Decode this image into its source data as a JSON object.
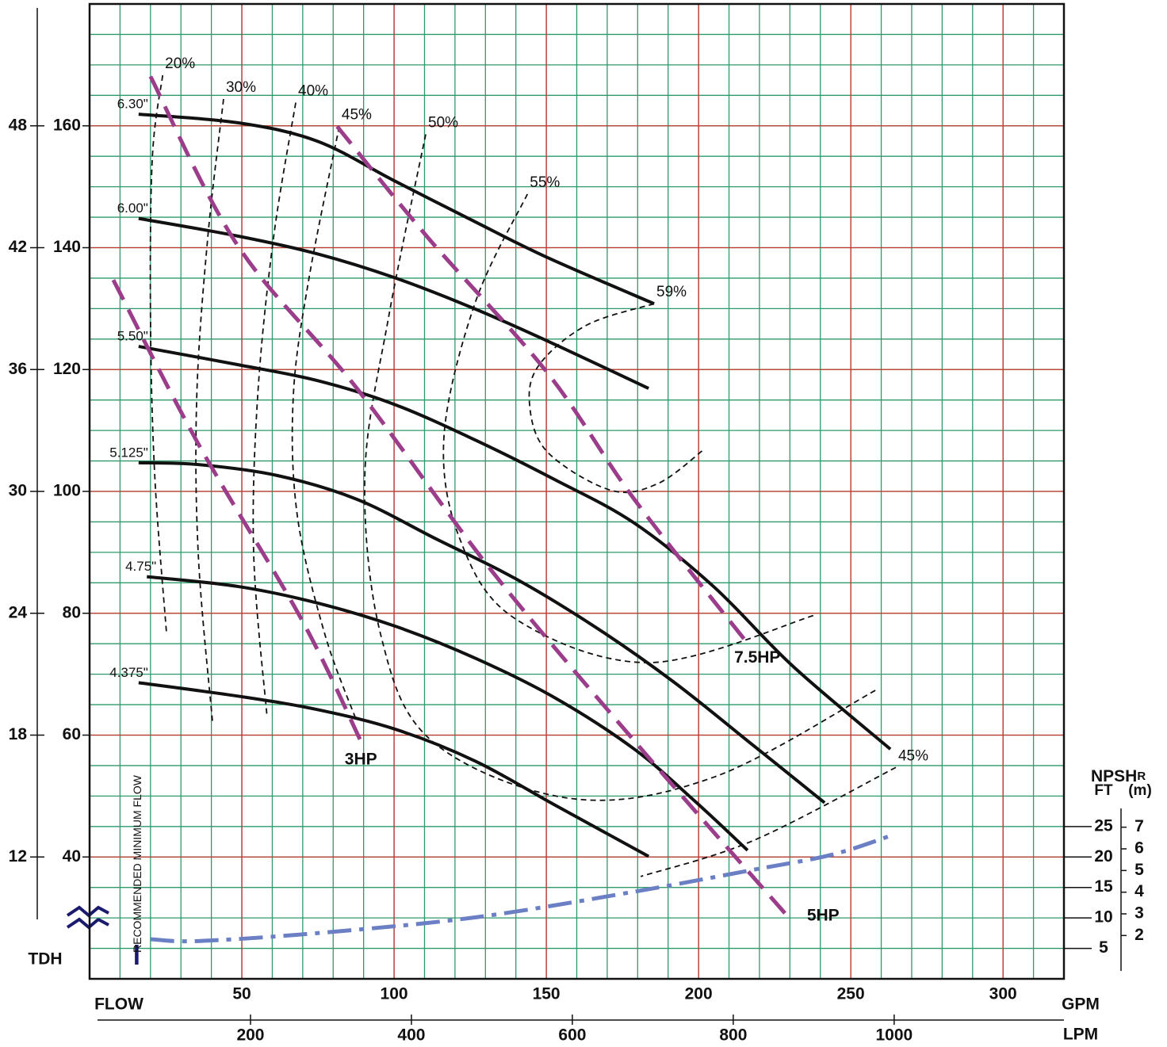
{
  "chart_data": {
    "type": "pump-curve",
    "x_label": "FLOW",
    "x_unit": "GPM",
    "x2_unit": "LPM",
    "y_label": "TDH",
    "xlim": [
      0,
      320
    ],
    "xticks": [
      50,
      100,
      150,
      200,
      250,
      300
    ],
    "x2lim": [
      0,
      1211
    ],
    "x2ticks": [
      200,
      400,
      600,
      800,
      1000
    ],
    "ylim": [
      20,
      180
    ],
    "yticks": [
      40,
      60,
      80,
      100,
      120,
      140,
      160
    ],
    "y2lim": [
      6,
      54
    ],
    "y2ticks": [
      12,
      18,
      24,
      30,
      36,
      42,
      48
    ],
    "grid": true,
    "minor_color": "#2e9a6c",
    "major_color": "#c8372d",
    "npsh_label": "NPSH",
    "npsh_sub": "R",
    "npsh_ft": "FT",
    "npsh_m": "(m)",
    "npsh_lim": [
      0,
      160
    ],
    "npsh_ticks": [
      5,
      10,
      15,
      20,
      25
    ],
    "npsh_m_lim": [
      0,
      45
    ],
    "npsh_m_ticks": [
      2,
      3,
      4,
      5,
      6,
      7
    ],
    "min_flow_label": "RECOMMENDED MINIMUM FLOW",
    "min_flow": 15.4,
    "impeller_color": "#111111",
    "impellers": [
      {
        "name": "6.30\"",
        "x": [
          16.1,
          48.7,
          74.7,
          100,
          126.8,
          150.3,
          185.4
        ],
        "y": [
          161.9,
          160.5,
          157.5,
          151,
          144.2,
          138.4,
          130.8
        ]
      },
      {
        "name": "6.00\"",
        "x": [
          16.1,
          48.7,
          74.7,
          100,
          126.8,
          152.9,
          183.6
        ],
        "y": [
          144.8,
          141.9,
          139,
          135.1,
          129.9,
          124.1,
          116.9
        ]
      },
      {
        "name": "5.50\"",
        "x": [
          16.1,
          48.7,
          74.7,
          100,
          126.8,
          152.9,
          178.9,
          204.9,
          231,
          263
        ],
        "y": [
          123.8,
          120.8,
          118.2,
          114.3,
          108.4,
          101.9,
          94.8,
          84.4,
          71.3,
          57.7
        ]
      },
      {
        "name": "5.125\"",
        "x": [
          16.1,
          35.7,
          61.7,
          87.8,
          113.8,
          139.8,
          165.9,
          191.9,
          218,
          241.4
        ],
        "y": [
          104.7,
          104.4,
          102.6,
          98.7,
          92.2,
          85.7,
          77.8,
          68.7,
          58.3,
          48.9
        ]
      },
      {
        "name": "4.75\"",
        "x": [
          18.8,
          48.7,
          74.7,
          100.8,
          126.8,
          152.9,
          178.9,
          198.7,
          216.1
        ],
        "y": [
          86,
          84.4,
          81.7,
          77.8,
          72.6,
          66.1,
          57.7,
          49.2,
          41.1
        ]
      },
      {
        "name": "4.375\"",
        "x": [
          16.1,
          48.7,
          74.7,
          100.8,
          126.8,
          152.9,
          183.6
        ],
        "y": [
          68.6,
          66.4,
          64.2,
          60.9,
          55.7,
          48.5,
          40.1
        ]
      }
    ],
    "power_color": "#9b3d8a",
    "power": [
      {
        "name": "3HP",
        "x": [
          7.8,
          35.7,
          69.5,
          89.1
        ],
        "y": [
          134.7,
          107.8,
          79.1,
          59
        ]
      },
      {
        "name": "5HP",
        "x": [
          20,
          48.7,
          87.8,
          132,
          180.2,
          229.2
        ],
        "y": [
          168.1,
          140.3,
          116.9,
          87,
          58.3,
          30.3
        ]
      },
      {
        "name": "7.5HP",
        "x": [
          81.3,
          111.2,
          150.3,
          178.9,
          215.4
        ],
        "y": [
          159.9,
          141.6,
          119.5,
          98.7,
          75.5
        ]
      }
    ],
    "efficiency": [
      {
        "name": "20%",
        "x": [
          24,
          20.6,
          20,
          21.4,
          25.3
        ],
        "y": [
          168.3,
          154.7,
          128.6,
          102.6,
          76.5
        ]
      },
      {
        "name": "30%",
        "x": [
          44,
          38.8,
          35.2,
          35.7,
          40.4
        ],
        "y": [
          164.4,
          141.6,
          115.6,
          89.6,
          62
        ]
      },
      {
        "name": "40%",
        "x": [
          67.7,
          60.4,
          55.2,
          53.9,
          58.3
        ],
        "y": [
          163.8,
          141.6,
          115.6,
          89.6,
          62.9
        ]
      },
      {
        "name": "45%",
        "x": [
          82,
          72.1,
          66.9,
          68.2,
          77.3,
          87.8
        ],
        "y": [
          159.9,
          135.1,
          115.6,
          96.1,
          76.5,
          62.2
        ]
      },
      {
        "name": "50%",
        "x": [
          110.4,
          98.2,
          90.4,
          95.6,
          112.5,
          158.1,
          205,
          258.3
        ],
        "y": [
          158.6,
          128.6,
          102.6,
          76.5,
          59,
          49.6,
          53.1,
          67.4
        ]
      },
      {
        "name": "55%",
        "x": [
          143.8,
          126.8,
          116.4,
          121.6,
          139.8,
          184.1,
          238.8
        ],
        "y": [
          148.8,
          131.2,
          109.1,
          92.2,
          79.1,
          71.9,
          79.8
        ]
      },
      {
        "name": "59%",
        "x": [
          185.4,
          163.3,
          147.7,
          144.5,
          150.3,
          171.1,
          186.7,
          201.8
        ],
        "y": [
          130.8,
          127.3,
          120.8,
          114.3,
          106.5,
          100.2,
          101.3,
          106.9
        ]
      },
      {
        "name": "45%",
        "x": [
          264.8,
          218,
          181
        ],
        "y": [
          54.7,
          42.7,
          36.8
        ]
      }
    ],
    "npsh_curve": {
      "color": "#6b7fc4",
      "x": [
        20,
        35.7,
        74.7,
        126.8,
        178.9,
        218,
        244,
        264.3
      ],
      "y": [
        6.5,
        6.2,
        7.5,
        10.1,
        14.3,
        17.9,
        20.4,
        23.7
      ]
    }
  }
}
